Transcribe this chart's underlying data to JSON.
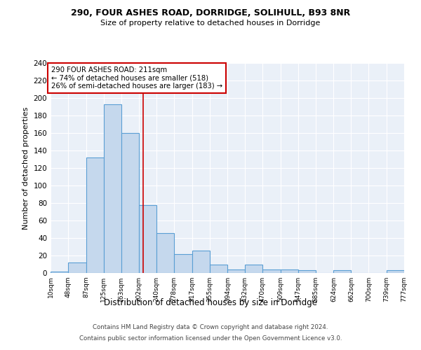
{
  "title1": "290, FOUR ASHES ROAD, DORRIDGE, SOLIHULL, B93 8NR",
  "title2": "Size of property relative to detached houses in Dorridge",
  "xlabel": "Distribution of detached houses by size in Dorridge",
  "ylabel": "Number of detached properties",
  "bin_edges": [
    10,
    48,
    87,
    125,
    163,
    202,
    240,
    278,
    317,
    355,
    394,
    432,
    470,
    509,
    547,
    585,
    624,
    662,
    700,
    739,
    777
  ],
  "bar_heights": [
    2,
    12,
    132,
    193,
    160,
    78,
    46,
    22,
    26,
    10,
    4,
    10,
    4,
    4,
    3,
    0,
    3,
    0,
    0,
    3
  ],
  "bar_color": "#c5d8ed",
  "bar_edge_color": "#5a9fd4",
  "vline_x": 211,
  "vline_color": "#cc0000",
  "annotation_line1": "290 FOUR ASHES ROAD: 211sqm",
  "annotation_line2": "← 74% of detached houses are smaller (518)",
  "annotation_line3": "26% of semi-detached houses are larger (183) →",
  "annotation_box_color": "white",
  "annotation_box_edge": "#cc0000",
  "ylim": [
    0,
    240
  ],
  "yticks": [
    0,
    20,
    40,
    60,
    80,
    100,
    120,
    140,
    160,
    180,
    200,
    220,
    240
  ],
  "background_color": "#eaf0f8",
  "footer1": "Contains HM Land Registry data © Crown copyright and database right 2024.",
  "footer2": "Contains public sector information licensed under the Open Government Licence v3.0."
}
